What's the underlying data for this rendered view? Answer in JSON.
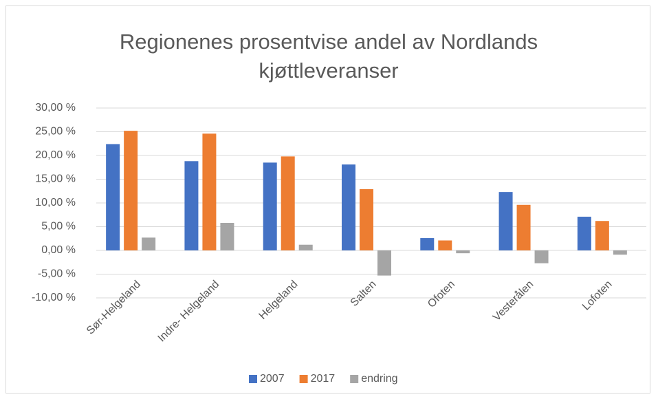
{
  "chart_data": {
    "type": "bar",
    "title": "Regionenes prosentvise andel av Nordlands kjøttleveranser",
    "categories": [
      "Sør-Helgeland",
      "Indre- Helgeland",
      "Helgeland",
      "Salten",
      "Ofoten",
      "Vesterålen",
      "Lofoten"
    ],
    "series": [
      {
        "name": "2007",
        "color": "#4472c4",
        "values": [
          22.4,
          18.8,
          18.5,
          18.1,
          2.6,
          12.3,
          7.1
        ]
      },
      {
        "name": "2017",
        "color": "#ed7d31",
        "values": [
          25.2,
          24.6,
          19.8,
          12.9,
          2.1,
          9.6,
          6.2
        ]
      },
      {
        "name": "endring",
        "color": "#a5a5a5",
        "values": [
          2.7,
          5.8,
          1.2,
          -5.3,
          -0.6,
          -2.7,
          -0.9
        ]
      }
    ],
    "ylim": [
      -10,
      30
    ],
    "yticks": [
      {
        "value": -10,
        "label": "-10,00 %"
      },
      {
        "value": -5,
        "label": "-5,00 %"
      },
      {
        "value": 0,
        "label": "0,00 %"
      },
      {
        "value": 5,
        "label": "5,00 %"
      },
      {
        "value": 10,
        "label": "10,00 %"
      },
      {
        "value": 15,
        "label": "15,00 %"
      },
      {
        "value": 20,
        "label": "20,00 %"
      },
      {
        "value": 25,
        "label": "25,00 %"
      },
      {
        "value": 30,
        "label": "30,00 %"
      }
    ],
    "grid": true,
    "legend": "bottom"
  }
}
